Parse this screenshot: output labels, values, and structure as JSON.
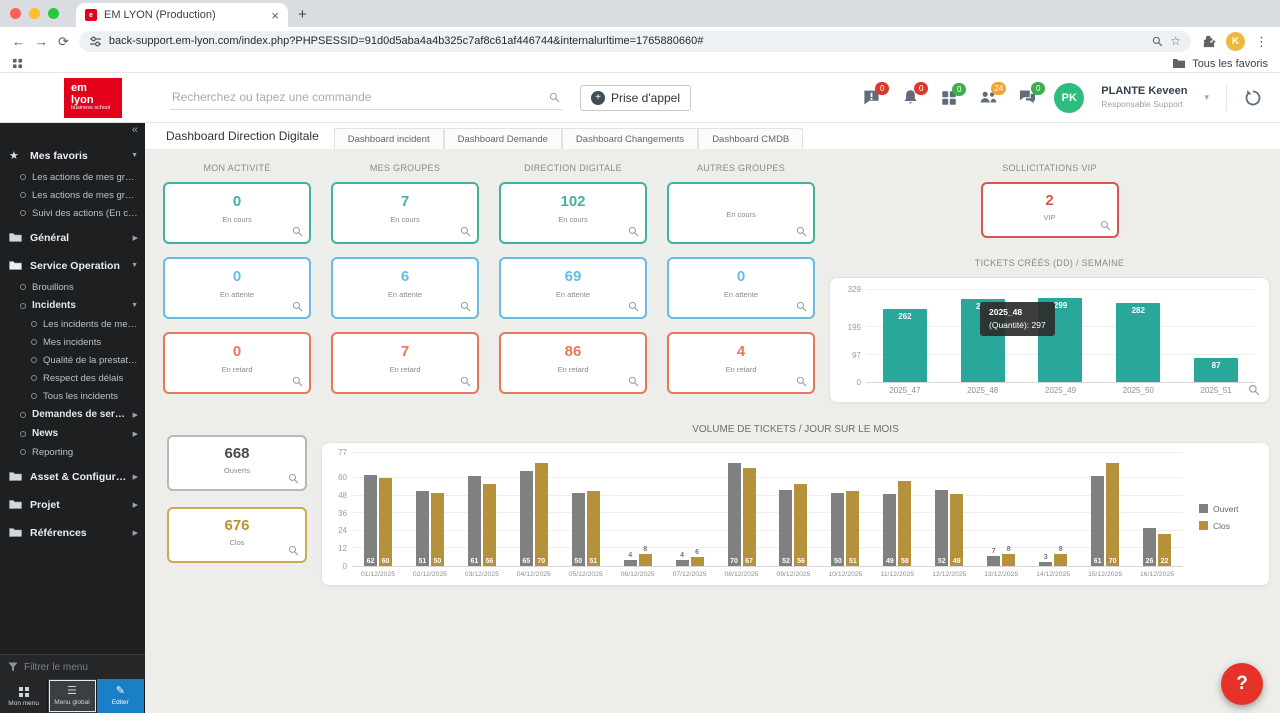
{
  "browser": {
    "tab": {
      "title": "EM LYON (Production)"
    },
    "url": "back-support.em-lyon.com/index.php?PHPSESSID=91d0d5aba4a4b325c7af8c61af446744&internalurltime=1765880660#",
    "bookmarks": {
      "all_favorites": "Tous les favoris"
    },
    "profile_initial": "K"
  },
  "header": {
    "logo_lines": [
      "em",
      "lyon",
      "business school"
    ],
    "search_placeholder": "Recherchez ou tapez une commande",
    "call_button_label": "Prise d'appel",
    "notif_badges": [
      {
        "icon": "alert-bubble",
        "count": "0",
        "color": "#d93a2b"
      },
      {
        "icon": "bell",
        "count": "0",
        "color": "#d93a2b"
      },
      {
        "icon": "modules",
        "count": "0",
        "color": "#3fae49"
      },
      {
        "icon": "groups",
        "count": "24",
        "color": "#f2a33c"
      },
      {
        "icon": "chat",
        "count": "0",
        "color": "#3fae49"
      }
    ],
    "user": {
      "initials": "PK",
      "name": "PLANTE Keveen",
      "role": "Responsable Support"
    }
  },
  "sidebar": {
    "filter_placeholder": "Filtrer le menu",
    "items": [
      {
        "label": "Mes favoris",
        "type": "section",
        "icon": "star",
        "state": "expanded",
        "level": 0
      },
      {
        "label": "Les actions de mes grou...",
        "type": "leaf",
        "level": 1
      },
      {
        "label": "Les actions de mes grou...",
        "type": "leaf",
        "level": 1
      },
      {
        "label": "Suivi des actions (En cou...",
        "type": "leaf",
        "level": 1
      },
      {
        "label": "Général",
        "type": "section",
        "icon": "folder",
        "state": "collapsed",
        "level": 0
      },
      {
        "label": "Service Operation",
        "type": "section",
        "icon": "folder-open",
        "state": "expanded",
        "level": 0
      },
      {
        "label": "Brouillons",
        "type": "leaf",
        "level": 1
      },
      {
        "label": "Incidents",
        "type": "branch",
        "state": "expanded",
        "level": 1
      },
      {
        "label": "Les incidents de mes...",
        "type": "leaf",
        "level": 2
      },
      {
        "label": "Mes incidents",
        "type": "leaf",
        "level": 2
      },
      {
        "label": "Qualité de la prestati...",
        "type": "leaf",
        "level": 2
      },
      {
        "label": "Respect des délais",
        "type": "leaf",
        "level": 2
      },
      {
        "label": "Tous les incidents",
        "type": "leaf",
        "level": 2
      },
      {
        "label": "Demandes de service",
        "type": "branch",
        "state": "collapsed",
        "level": 1
      },
      {
        "label": "News",
        "type": "branch",
        "state": "collapsed",
        "level": 1
      },
      {
        "label": "Reporting",
        "type": "leaf",
        "level": 1
      },
      {
        "label": "Asset & Configurati...",
        "type": "section",
        "icon": "folder",
        "state": "collapsed",
        "level": 0
      },
      {
        "label": "Projet",
        "type": "section",
        "icon": "folder",
        "state": "collapsed",
        "level": 0
      },
      {
        "label": "Références",
        "type": "section",
        "icon": "folder",
        "state": "collapsed",
        "level": 0
      }
    ],
    "footer_buttons": [
      {
        "label": "Mon menu",
        "style": "normal"
      },
      {
        "label": "Menu global",
        "style": "active"
      },
      {
        "label": "Editer",
        "style": "accent"
      }
    ]
  },
  "tabs": [
    {
      "label": "Dashboard Direction Digitale",
      "active": true
    },
    {
      "label": "Dashboard incident",
      "active": false
    },
    {
      "label": "Dashboard Demande",
      "active": false
    },
    {
      "label": "Dashboard Changements",
      "active": false
    },
    {
      "label": "Dashboard CMDB",
      "active": false
    }
  ],
  "stats": {
    "columns": [
      {
        "title": "MON ACTIVITÉ",
        "cards": [
          {
            "value": "0",
            "label": "En cours",
            "color": "#45b0a2"
          },
          {
            "value": "0",
            "label": "En attente",
            "color": "#67bde4"
          },
          {
            "value": "0",
            "label": "En retard",
            "color": "#e8765a"
          }
        ]
      },
      {
        "title": "MES GROUPES",
        "cards": [
          {
            "value": "7",
            "label": "En cours",
            "color": "#45b0a2"
          },
          {
            "value": "6",
            "label": "En attente",
            "color": "#67bde4"
          },
          {
            "value": "7",
            "label": "En retard",
            "color": "#e8765a"
          }
        ]
      },
      {
        "title": "DIRECTION DIGITALE",
        "cards": [
          {
            "value": "102",
            "label": "En cours",
            "color": "#45b0a2"
          },
          {
            "value": "69",
            "label": "En attente",
            "color": "#67bde4"
          },
          {
            "value": "86",
            "label": "En retard",
            "color": "#e8765a"
          }
        ]
      },
      {
        "title": "AUTRES GROUPES",
        "cards": [
          {
            "value": "",
            "label": "En cours",
            "color": "#45b0a2"
          },
          {
            "value": "0",
            "label": "En attente",
            "color": "#67bde4"
          },
          {
            "value": "4",
            "label": "En retard",
            "color": "#e8765a"
          }
        ]
      }
    ],
    "vip": {
      "title": "SOLLICITATIONS VIP",
      "card": {
        "value": "2",
        "label": "VIP"
      }
    },
    "totals": [
      {
        "value": "668",
        "label": "Ouverts",
        "border": "#b7b7b7",
        "text": "#4a4a4a"
      },
      {
        "value": "676",
        "label": "Clos",
        "border": "#cfa94e",
        "text": "#b8912f"
      }
    ]
  },
  "chart_data": [
    {
      "type": "bar",
      "title": "TICKETS CRÉÉS (DD) / SEMAINE",
      "categories": [
        "2025_47",
        "2025_48",
        "2025_49",
        "2025_50",
        "2025_51"
      ],
      "values": [
        262,
        297,
        299,
        282,
        87
      ],
      "bar_color": "#2aa79b",
      "ylim": [
        0,
        329
      ],
      "yticks": [
        0,
        97,
        195,
        329
      ],
      "grid": true,
      "tooltip": {
        "title": "2025_48",
        "body": "(Quantité): 297"
      }
    },
    {
      "type": "bar",
      "title": "VOLUME DE TICKETS / JOUR SUR LE MOIS",
      "categories": [
        "01/12/2025",
        "02/12/2025",
        "03/12/2025",
        "04/12/2025",
        "05/12/2025",
        "06/12/2025",
        "07/12/2025",
        "08/12/2025",
        "09/12/2025",
        "10/12/2025",
        "11/12/2025",
        "12/12/2025",
        "13/12/2025",
        "14/12/2025",
        "15/12/2025",
        "16/12/2025"
      ],
      "series": [
        {
          "name": "Ouvert",
          "color": "#808080",
          "values": [
            62,
            51,
            61,
            65,
            50,
            4,
            4,
            70,
            52,
            50,
            49,
            52,
            7,
            3,
            61,
            26
          ]
        },
        {
          "name": "Clos",
          "color": "#b5913c",
          "values": [
            60,
            50,
            56,
            70,
            51,
            8,
            6,
            67,
            56,
            51,
            58,
            49,
            8,
            8,
            70,
            22
          ]
        }
      ],
      "ylim": [
        0,
        77
      ],
      "yticks": [
        0,
        12,
        24,
        36,
        48,
        60,
        77
      ],
      "grid": true,
      "legend_position": "right"
    }
  ],
  "help_button": "?"
}
